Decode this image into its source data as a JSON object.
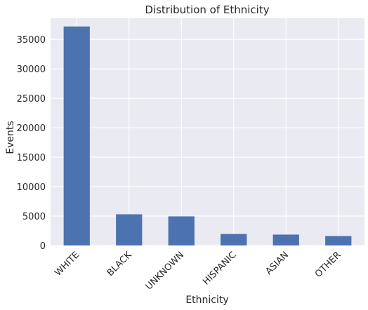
{
  "chart_data": {
    "type": "bar",
    "title": "Distribution of Ethnicity",
    "xlabel": "Ethnicity",
    "ylabel": "Events",
    "categories": [
      "WHITE",
      "BLACK",
      "UNKNOWN",
      "HISPANIC",
      "ASIAN",
      "OTHER"
    ],
    "values": [
      37200,
      5300,
      4950,
      1950,
      1850,
      1600
    ],
    "ylim": [
      0,
      38600
    ],
    "yticks": [
      0,
      5000,
      10000,
      15000,
      20000,
      25000,
      30000,
      35000
    ],
    "grid": true,
    "legend": "none",
    "colors": {
      "bar": "#4c72b0",
      "plot_background": "#eaeaf2",
      "grid": "#ffffff",
      "text": "#262626"
    }
  }
}
